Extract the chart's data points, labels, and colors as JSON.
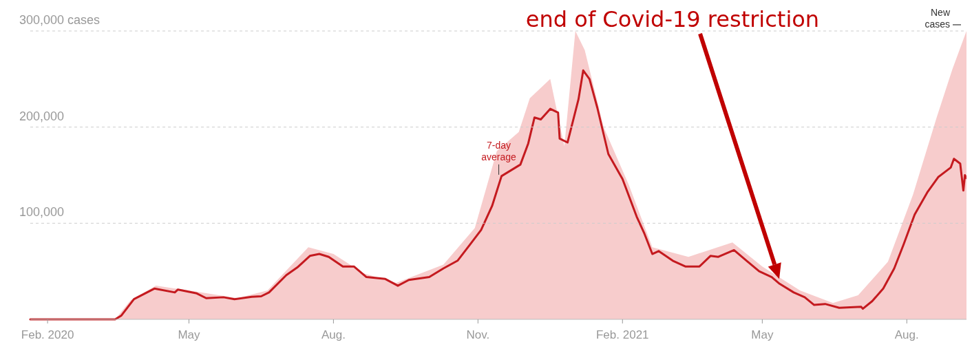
{
  "chart_data": {
    "type": "line",
    "xlim": [
      "2020-01-21",
      "2021-09-08"
    ],
    "xticks": [
      {
        "value": "2020-02-01",
        "label": "Feb. 2020"
      },
      {
        "value": "2020-05-01",
        "label": "May"
      },
      {
        "value": "2020-08-01",
        "label": "Aug."
      },
      {
        "value": "2020-11-01",
        "label": "Nov."
      },
      {
        "value": "2021-02-01",
        "label": "Feb. 2021"
      },
      {
        "value": "2021-05-01",
        "label": "May"
      },
      {
        "value": "2021-08-01",
        "label": "Aug."
      }
    ],
    "ylim": [
      0,
      300000
    ],
    "yticks": [
      {
        "value": 0,
        "label": null
      },
      {
        "value": 100000,
        "label": "100,000"
      },
      {
        "value": 200000,
        "label": "200,000"
      },
      {
        "value": 300000,
        "label": "300,000 cases"
      }
    ],
    "grid": "y",
    "annotations": [
      "end of Covid-19 restriction"
    ],
    "series": [
      {
        "name": "New cases",
        "type": "area",
        "color": "#f7cccc",
        "x": [
          "2020-01-21",
          "2020-03-15",
          "2020-03-25",
          "2020-04-10",
          "2020-05-01",
          "2020-06-01",
          "2020-06-20",
          "2020-07-16",
          "2020-08-01",
          "2020-08-20",
          "2020-09-10",
          "2020-10-10",
          "2020-10-30",
          "2020-11-13",
          "2020-11-27",
          "2020-12-04",
          "2020-12-17",
          "2020-12-26",
          "2021-01-02",
          "2021-01-08",
          "2021-01-20",
          "2021-02-05",
          "2021-02-20",
          "2021-03-15",
          "2021-04-12",
          "2021-05-01",
          "2021-05-25",
          "2021-06-15",
          "2021-07-01",
          "2021-07-20",
          "2021-08-05",
          "2021-08-20",
          "2021-08-30",
          "2021-09-08"
        ],
        "values": [
          0,
          0,
          20000,
          35000,
          30000,
          22000,
          30000,
          75000,
          68000,
          48000,
          38000,
          57000,
          95000,
          175000,
          195000,
          230000,
          250000,
          180000,
          300000,
          280000,
          200000,
          140000,
          75000,
          65000,
          80000,
          55000,
          30000,
          17000,
          25000,
          60000,
          130000,
          210000,
          260000,
          300000
        ]
      },
      {
        "name": "7-day average",
        "color": "#c41a1f",
        "x": [
          "2020-01-21",
          "2020-03-15",
          "2020-03-19",
          "2020-03-27",
          "2020-04-09",
          "2020-04-22",
          "2020-04-24",
          "2020-05-06",
          "2020-05-12",
          "2020-05-23",
          "2020-05-30",
          "2020-06-10",
          "2020-06-16",
          "2020-06-21",
          "2020-07-02",
          "2020-07-09",
          "2020-07-17",
          "2020-07-23",
          "2020-07-29",
          "2020-08-07",
          "2020-08-14",
          "2020-08-22",
          "2020-09-03",
          "2020-09-11",
          "2020-09-18",
          "2020-10-01",
          "2020-10-10",
          "2020-10-19",
          "2020-10-27",
          "2020-11-03",
          "2020-11-10",
          "2020-11-16",
          "2020-11-28",
          "2020-12-03",
          "2020-12-07",
          "2020-12-11",
          "2020-12-17",
          "2020-12-22",
          "2020-12-23",
          "2020-12-28",
          "2021-01-04",
          "2021-01-07",
          "2021-01-11",
          "2021-01-16",
          "2021-01-23",
          "2021-02-01",
          "2021-02-10",
          "2021-02-15",
          "2021-02-20",
          "2021-02-24",
          "2021-03-05",
          "2021-03-13",
          "2021-03-22",
          "2021-03-29",
          "2021-04-03",
          "2021-04-13",
          "2021-04-21",
          "2021-04-29",
          "2021-05-07",
          "2021-05-12",
          "2021-05-21",
          "2021-05-28",
          "2021-06-03",
          "2021-06-10",
          "2021-06-19",
          "2021-07-03",
          "2021-07-04",
          "2021-07-10",
          "2021-07-17",
          "2021-07-24",
          "2021-07-30",
          "2021-08-06",
          "2021-08-14",
          "2021-08-21",
          "2021-08-29",
          "2021-08-31",
          "2021-09-04",
          "2021-09-06",
          "2021-09-07",
          "2021-09-08"
        ],
        "values": [
          0,
          0,
          4000,
          21000,
          32000,
          28000,
          31000,
          27000,
          22000,
          23000,
          21000,
          23500,
          24000,
          28000,
          46000,
          54000,
          66000,
          68000,
          65000,
          55000,
          55000,
          44000,
          42000,
          35000,
          41000,
          44000,
          53000,
          61000,
          78000,
          93000,
          118000,
          149000,
          161000,
          183000,
          210000,
          208000,
          219000,
          215000,
          188000,
          184000,
          229000,
          259000,
          250000,
          220000,
          172000,
          146000,
          107000,
          89000,
          68000,
          71000,
          61000,
          55000,
          55000,
          66000,
          65000,
          72000,
          61000,
          50000,
          44000,
          37000,
          28000,
          23000,
          15000,
          16000,
          12000,
          13000,
          11000,
          19000,
          32000,
          53000,
          78000,
          109000,
          132000,
          148000,
          158000,
          167000,
          162000,
          134000,
          150000,
          147000
        ]
      }
    ]
  }
}
